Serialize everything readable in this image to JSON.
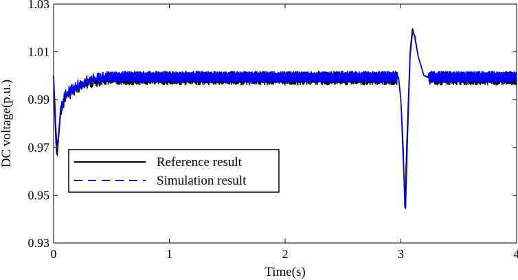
{
  "chart_data": {
    "type": "line",
    "xlabel": "Time(s)",
    "ylabel": "DC voltage(p.u.)",
    "xlim": [
      0,
      4
    ],
    "ylim": [
      0.93,
      1.03
    ],
    "xticks": [
      0,
      1,
      2,
      3,
      4
    ],
    "xtick_labels": [
      "0",
      "1",
      "2",
      "3",
      "4"
    ],
    "yticks": [
      0.93,
      0.95,
      0.97,
      0.99,
      1.01,
      1.03
    ],
    "ytick_labels": [
      "0.93",
      "0.95",
      "0.97",
      "0.99",
      "1.01",
      "1.03"
    ],
    "grid": false,
    "legend_position": "lower-left",
    "series": [
      {
        "name": "Reference result",
        "color": "#000000",
        "style": "solid",
        "ripple_band": [
          0.996,
          1.002
        ],
        "points": [
          [
            0.0,
            1.0
          ],
          [
            0.01,
            0.985
          ],
          [
            0.02,
            0.972
          ],
          [
            0.03,
            0.966
          ],
          [
            0.04,
            0.972
          ],
          [
            0.06,
            0.984
          ],
          [
            0.1,
            0.991
          ],
          [
            0.2,
            0.995
          ],
          [
            0.3,
            0.997
          ],
          [
            0.4,
            0.998
          ],
          [
            0.5,
            0.999
          ],
          [
            1.0,
            0.999
          ],
          [
            2.0,
            0.999
          ],
          [
            2.9,
            0.999
          ],
          [
            2.98,
            0.999
          ],
          [
            3.0,
            0.99
          ],
          [
            3.02,
            0.97
          ],
          [
            3.035,
            0.944
          ],
          [
            3.05,
            0.97
          ],
          [
            3.08,
            1.01
          ],
          [
            3.1,
            1.02
          ],
          [
            3.12,
            1.016
          ],
          [
            3.15,
            1.008
          ],
          [
            3.2,
            1.0
          ],
          [
            3.25,
            0.999
          ],
          [
            4.0,
            0.999
          ]
        ]
      },
      {
        "name": "Simulation result",
        "color": "#0000ff",
        "style": "dashed",
        "ripple_band": [
          0.997,
          1.002
        ],
        "points": [
          [
            0.0,
            1.0
          ],
          [
            0.01,
            0.99
          ],
          [
            0.02,
            0.978
          ],
          [
            0.03,
            0.97
          ],
          [
            0.04,
            0.974
          ],
          [
            0.06,
            0.986
          ],
          [
            0.1,
            0.992
          ],
          [
            0.2,
            0.996
          ],
          [
            0.3,
            0.998
          ],
          [
            0.4,
            0.999
          ],
          [
            0.5,
            0.9995
          ],
          [
            1.0,
            0.9995
          ],
          [
            2.0,
            0.9995
          ],
          [
            2.9,
            0.9995
          ],
          [
            2.98,
            0.9995
          ],
          [
            3.0,
            0.99
          ],
          [
            3.02,
            0.965
          ],
          [
            3.04,
            0.942
          ],
          [
            3.055,
            0.97
          ],
          [
            3.08,
            1.008
          ],
          [
            3.1,
            1.018
          ],
          [
            3.12,
            1.017
          ],
          [
            3.15,
            1.008
          ],
          [
            3.2,
            1.0
          ],
          [
            3.25,
            0.9995
          ],
          [
            4.0,
            0.9995
          ]
        ]
      }
    ]
  }
}
